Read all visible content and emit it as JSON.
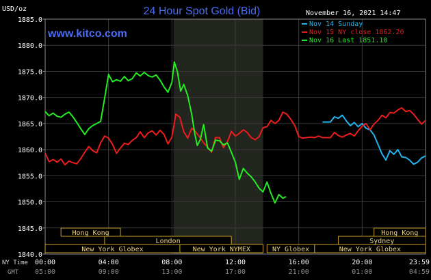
{
  "chart_data": {
    "type": "line",
    "title": "24 Hour Spot Gold (Bid)",
    "unit_label": "USD/oz",
    "timestamp": "November 16, 2021 14:47",
    "website": "www.kitco.com",
    "ylim": [
      1840,
      1885
    ],
    "y_ticks": [
      "1885.0",
      "1880.0",
      "1875.0",
      "1870.0",
      "1865.0",
      "1860.0",
      "1855.0",
      "1850.0",
      "1845.0",
      "1840.0"
    ],
    "y_tick_values": [
      1885,
      1880,
      1875,
      1870,
      1865,
      1860,
      1855,
      1850,
      1845,
      1840
    ],
    "xlim": [
      0,
      24
    ],
    "x_tick_hours": [
      0,
      4,
      8,
      12,
      16,
      20,
      24
    ],
    "x_ticks_ny": [
      "00:00",
      "04:00",
      "08:00",
      "12:00",
      "16:00",
      "20:00",
      "23:59"
    ],
    "x_ticks_gmt": [
      "05:00",
      "09:00",
      "13:00",
      "17:00",
      "21:00",
      "01:00",
      "04:59"
    ],
    "x_label_ny": "NY Time",
    "x_label_gmt": "GMT",
    "highlight_range": [
      8.1,
      13.75
    ],
    "sessions": [
      {
        "name": "Hong Kong",
        "start": 1.0,
        "end": 4.75,
        "row": 0
      },
      {
        "name": "Hong Kong",
        "start": 20.75,
        "end": 24.0,
        "row": 0
      },
      {
        "name": "London",
        "start": 3.75,
        "end": 11.75,
        "row": 1
      },
      {
        "name": "Sydney",
        "start": 18.5,
        "end": 24.0,
        "row": 1
      },
      {
        "name": "New York Globex",
        "start": 0.0,
        "end": 8.5,
        "row": 2
      },
      {
        "name": "New York NYMEX",
        "start": 8.5,
        "end": 13.75,
        "row": 2
      },
      {
        "name": "NY Globex",
        "start": 14.0,
        "end": 17.0,
        "row": 2
      },
      {
        "name": "New York Globex",
        "start": 17.0,
        "end": 24.0,
        "row": 2
      }
    ],
    "series": [
      {
        "name": "Nov 14 Sunday",
        "color": "#21b5ef",
        "points": [
          [
            17.5,
            1865.3
          ],
          [
            18.0,
            1865.3
          ],
          [
            18.25,
            1866.3
          ],
          [
            18.5,
            1866.0
          ],
          [
            18.75,
            1866.6
          ],
          [
            19.0,
            1865.5
          ],
          [
            19.25,
            1864.6
          ],
          [
            19.5,
            1865.2
          ],
          [
            19.75,
            1864.4
          ],
          [
            20.0,
            1865.0
          ],
          [
            20.25,
            1864.1
          ],
          [
            20.5,
            1863.8
          ],
          [
            20.75,
            1862.8
          ],
          [
            21.0,
            1861.0
          ],
          [
            21.25,
            1859.2
          ],
          [
            21.5,
            1858.0
          ],
          [
            21.75,
            1859.8
          ],
          [
            22.0,
            1859.1
          ],
          [
            22.25,
            1860.0
          ],
          [
            22.5,
            1858.6
          ],
          [
            22.75,
            1858.5
          ],
          [
            23.0,
            1858.0
          ],
          [
            23.25,
            1857.2
          ],
          [
            23.5,
            1857.6
          ],
          [
            23.75,
            1858.4
          ],
          [
            24.0,
            1858.8
          ]
        ]
      },
      {
        "name": "Nov 15 NY close 1862.20",
        "color": "#ee1d1d",
        "points": [
          [
            0.0,
            1859.3
          ],
          [
            0.25,
            1857.7
          ],
          [
            0.5,
            1858.1
          ],
          [
            0.75,
            1857.6
          ],
          [
            1.0,
            1858.2
          ],
          [
            1.25,
            1857.1
          ],
          [
            1.5,
            1857.8
          ],
          [
            1.75,
            1857.5
          ],
          [
            2.0,
            1857.3
          ],
          [
            2.25,
            1858.3
          ],
          [
            2.5,
            1859.5
          ],
          [
            2.75,
            1860.6
          ],
          [
            3.0,
            1859.8
          ],
          [
            3.25,
            1859.4
          ],
          [
            3.5,
            1861.3
          ],
          [
            3.75,
            1862.6
          ],
          [
            4.0,
            1862.2
          ],
          [
            4.25,
            1861.0
          ],
          [
            4.5,
            1859.3
          ],
          [
            4.75,
            1860.3
          ],
          [
            5.0,
            1861.2
          ],
          [
            5.25,
            1861.0
          ],
          [
            5.5,
            1861.8
          ],
          [
            5.75,
            1862.3
          ],
          [
            6.0,
            1863.4
          ],
          [
            6.25,
            1862.3
          ],
          [
            6.5,
            1863.2
          ],
          [
            6.75,
            1863.6
          ],
          [
            7.0,
            1862.8
          ],
          [
            7.25,
            1863.7
          ],
          [
            7.5,
            1862.9
          ],
          [
            7.75,
            1861.1
          ],
          [
            8.0,
            1862.4
          ],
          [
            8.25,
            1866.8
          ],
          [
            8.5,
            1866.2
          ],
          [
            8.75,
            1863.4
          ],
          [
            9.0,
            1862.2
          ],
          [
            9.25,
            1864.1
          ],
          [
            9.5,
            1863.4
          ],
          [
            9.75,
            1862.4
          ],
          [
            10.0,
            1861.3
          ],
          [
            10.25,
            1860.5
          ],
          [
            10.5,
            1859.5
          ],
          [
            10.75,
            1862.3
          ],
          [
            11.0,
            1862.3
          ],
          [
            11.25,
            1860.4
          ],
          [
            11.5,
            1861.5
          ],
          [
            11.75,
            1863.5
          ],
          [
            12.0,
            1862.6
          ],
          [
            12.25,
            1863.1
          ],
          [
            12.5,
            1863.8
          ],
          [
            12.75,
            1863.3
          ],
          [
            13.0,
            1862.3
          ],
          [
            13.25,
            1861.9
          ],
          [
            13.5,
            1862.5
          ],
          [
            13.75,
            1864.2
          ],
          [
            14.0,
            1864.4
          ],
          [
            14.25,
            1865.6
          ],
          [
            14.5,
            1865.0
          ],
          [
            14.75,
            1865.6
          ],
          [
            15.0,
            1867.2
          ],
          [
            15.25,
            1866.8
          ],
          [
            15.5,
            1865.8
          ],
          [
            15.75,
            1864.6
          ],
          [
            16.0,
            1862.5
          ],
          [
            16.25,
            1862.2
          ],
          [
            16.5,
            1862.3
          ],
          [
            16.75,
            1862.4
          ],
          [
            17.0,
            1862.3
          ],
          [
            17.25,
            1862.6
          ],
          [
            17.5,
            1862.3
          ],
          [
            17.75,
            1862.3
          ],
          [
            18.0,
            1862.3
          ],
          [
            18.25,
            1863.3
          ],
          [
            18.5,
            1862.7
          ],
          [
            18.75,
            1862.4
          ],
          [
            19.0,
            1862.8
          ],
          [
            19.25,
            1863.1
          ],
          [
            19.5,
            1862.6
          ],
          [
            19.75,
            1863.6
          ],
          [
            20.0,
            1864.5
          ],
          [
            20.25,
            1865.0
          ],
          [
            20.5,
            1863.8
          ],
          [
            20.75,
            1864.9
          ],
          [
            21.0,
            1865.6
          ],
          [
            21.25,
            1866.6
          ],
          [
            21.5,
            1866.1
          ],
          [
            21.75,
            1867.1
          ],
          [
            22.0,
            1867.0
          ],
          [
            22.25,
            1867.6
          ],
          [
            22.5,
            1868.0
          ],
          [
            22.75,
            1867.3
          ],
          [
            23.0,
            1867.5
          ],
          [
            23.25,
            1866.8
          ],
          [
            23.5,
            1865.8
          ],
          [
            23.75,
            1864.9
          ],
          [
            24.0,
            1865.6
          ]
        ]
      },
      {
        "name": "Nov 16 Last 1851.10",
        "color": "#22ee22",
        "points": [
          [
            0.0,
            1867.3
          ],
          [
            0.25,
            1866.5
          ],
          [
            0.5,
            1867.0
          ],
          [
            0.75,
            1866.4
          ],
          [
            1.0,
            1866.2
          ],
          [
            1.25,
            1866.8
          ],
          [
            1.5,
            1867.2
          ],
          [
            1.75,
            1866.3
          ],
          [
            2.0,
            1865.2
          ],
          [
            2.25,
            1864.0
          ],
          [
            2.5,
            1862.9
          ],
          [
            2.75,
            1864.0
          ],
          [
            3.0,
            1864.6
          ],
          [
            3.25,
            1865.0
          ],
          [
            3.5,
            1865.4
          ],
          [
            3.75,
            1869.8
          ],
          [
            4.0,
            1874.4
          ],
          [
            4.25,
            1873.0
          ],
          [
            4.5,
            1873.4
          ],
          [
            4.75,
            1873.1
          ],
          [
            5.0,
            1874.0
          ],
          [
            5.25,
            1873.2
          ],
          [
            5.5,
            1873.6
          ],
          [
            5.75,
            1874.7
          ],
          [
            6.0,
            1874.1
          ],
          [
            6.25,
            1874.8
          ],
          [
            6.5,
            1874.2
          ],
          [
            6.75,
            1873.9
          ],
          [
            7.0,
            1874.3
          ],
          [
            7.25,
            1873.3
          ],
          [
            7.5,
            1872.0
          ],
          [
            7.75,
            1871.0
          ],
          [
            8.0,
            1872.9
          ],
          [
            8.15,
            1876.8
          ],
          [
            8.35,
            1874.9
          ],
          [
            8.55,
            1871.2
          ],
          [
            8.75,
            1872.5
          ],
          [
            9.0,
            1870.3
          ],
          [
            9.25,
            1866.7
          ],
          [
            9.45,
            1862.9
          ],
          [
            9.6,
            1860.8
          ],
          [
            9.8,
            1862.0
          ],
          [
            10.0,
            1864.8
          ],
          [
            10.25,
            1860.3
          ],
          [
            10.5,
            1859.7
          ],
          [
            10.75,
            1861.8
          ],
          [
            11.0,
            1861.7
          ],
          [
            11.25,
            1860.9
          ],
          [
            11.5,
            1861.3
          ],
          [
            11.75,
            1859.5
          ],
          [
            12.0,
            1857.6
          ],
          [
            12.25,
            1854.3
          ],
          [
            12.5,
            1856.4
          ],
          [
            12.75,
            1855.5
          ],
          [
            13.0,
            1854.8
          ],
          [
            13.25,
            1853.8
          ],
          [
            13.5,
            1852.6
          ],
          [
            13.75,
            1851.9
          ],
          [
            14.0,
            1853.8
          ],
          [
            14.25,
            1851.6
          ],
          [
            14.5,
            1849.8
          ],
          [
            14.75,
            1851.4
          ],
          [
            15.0,
            1850.7
          ],
          [
            15.2,
            1851.0
          ]
        ]
      }
    ]
  }
}
